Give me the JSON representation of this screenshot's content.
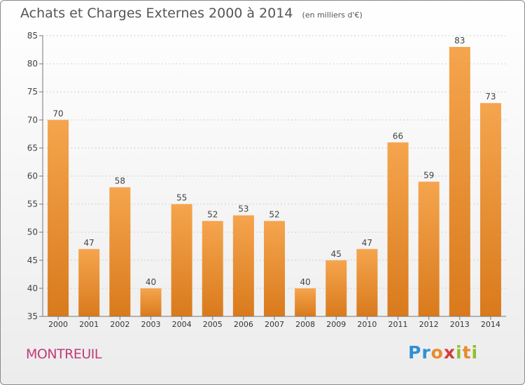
{
  "header": {
    "title": "Achats et Charges Externes 2000 à 2014",
    "unit": "(en milliers d'€)"
  },
  "footer": {
    "commune": "MONTREUIL",
    "logo_text": "Proxiti"
  },
  "colors": {
    "bar_top": "#f5a54e",
    "bar_bottom": "#d97a1c",
    "commune": "#c23b7a"
  },
  "chart_data": {
    "type": "bar",
    "categories": [
      "2000",
      "2001",
      "2002",
      "2003",
      "2004",
      "2005",
      "2006",
      "2007",
      "2008",
      "2009",
      "2010",
      "2011",
      "2012",
      "2013",
      "2014"
    ],
    "values": [
      70,
      47,
      58,
      40,
      55,
      52,
      53,
      52,
      40,
      45,
      47,
      66,
      59,
      83,
      73
    ],
    "title": "Achats et Charges Externes 2000 à 2014",
    "ylim": [
      35,
      85
    ],
    "yticks": [
      35,
      40,
      45,
      50,
      55,
      60,
      65,
      70,
      75,
      80,
      85
    ],
    "grid": true,
    "data_labels": true
  }
}
